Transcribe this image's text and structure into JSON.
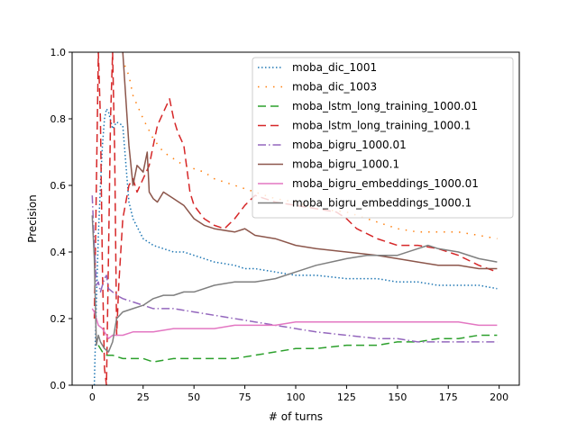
{
  "chart_data": {
    "type": "line",
    "title": "",
    "xlabel": "# of turns",
    "ylabel": "Precision",
    "xlim": [
      -9.9,
      209.9
    ],
    "ylim": [
      0.0,
      1.0
    ],
    "x_ticks": [
      0,
      25,
      50,
      75,
      100,
      125,
      150,
      175,
      200
    ],
    "y_ticks": [
      0.0,
      0.2,
      0.4,
      0.6,
      0.8,
      1.0
    ],
    "x_tick_labels": [
      "0",
      "25",
      "50",
      "75",
      "100",
      "125",
      "150",
      "175",
      "200"
    ],
    "y_tick_labels": [
      "0.0",
      "0.2",
      "0.4",
      "0.6",
      "0.8",
      "1.0"
    ],
    "grid": false,
    "legend_position": "upper right",
    "series": [
      {
        "name": "moba_dic_1001",
        "color": "#1f77b4",
        "dash": "dotted",
        "x": [
          1,
          2,
          3,
          4,
          5,
          6,
          7,
          8,
          10,
          12,
          15,
          18,
          20,
          25,
          30,
          35,
          40,
          45,
          50,
          60,
          70,
          75,
          80,
          90,
          100,
          110,
          125,
          140,
          150,
          160,
          170,
          180,
          190,
          199
        ],
        "y": [
          0.0,
          0.25,
          0.45,
          0.6,
          0.72,
          0.8,
          0.83,
          0.82,
          0.77,
          0.79,
          0.78,
          0.55,
          0.5,
          0.44,
          0.42,
          0.41,
          0.4,
          0.4,
          0.39,
          0.37,
          0.36,
          0.35,
          0.35,
          0.34,
          0.33,
          0.33,
          0.32,
          0.32,
          0.31,
          0.31,
          0.3,
          0.3,
          0.3,
          0.29
        ]
      },
      {
        "name": "moba_dic_1003",
        "color": "#ff7f0e",
        "dash": "loose-dotted",
        "x": [
          16,
          18,
          20,
          25,
          30,
          35,
          40,
          45,
          50,
          55,
          60,
          70,
          75,
          80,
          90,
          100,
          110,
          125,
          140,
          150,
          160,
          170,
          180,
          190,
          199
        ],
        "y": [
          0.96,
          0.93,
          0.87,
          0.8,
          0.74,
          0.7,
          0.68,
          0.66,
          0.65,
          0.64,
          0.62,
          0.6,
          0.59,
          0.58,
          0.56,
          0.55,
          0.53,
          0.52,
          0.49,
          0.47,
          0.46,
          0.46,
          0.46,
          0.45,
          0.44
        ]
      },
      {
        "name": "moba_lstm_long_training_1000.01",
        "color": "#2ca02c",
        "dash": "dashed",
        "x": [
          3,
          5,
          7,
          10,
          15,
          20,
          25,
          30,
          40,
          50,
          60,
          70,
          80,
          90,
          100,
          110,
          125,
          140,
          150,
          160,
          170,
          180,
          190,
          199
        ],
        "y": [
          0.12,
          0.1,
          0.09,
          0.09,
          0.08,
          0.08,
          0.08,
          0.07,
          0.08,
          0.08,
          0.08,
          0.08,
          0.09,
          0.1,
          0.11,
          0.11,
          0.12,
          0.12,
          0.13,
          0.13,
          0.14,
          0.14,
          0.15,
          0.15
        ]
      },
      {
        "name": "moba_lstm_long_training_1000.1",
        "color": "#d62728",
        "dash": "dashed",
        "x": [
          1,
          2,
          3,
          4,
          5,
          6,
          7,
          8,
          9,
          10,
          11,
          12,
          13,
          15,
          18,
          20,
          22,
          25,
          28,
          30,
          32,
          35,
          38,
          40,
          42,
          45,
          48,
          50,
          55,
          60,
          65,
          70,
          75,
          80,
          90,
          100,
          110,
          120,
          125,
          130,
          140,
          150,
          160,
          170,
          180,
          190,
          199
        ],
        "y": [
          0.2,
          0.6,
          1.0,
          0.8,
          0.35,
          0.05,
          0.0,
          0.4,
          0.8,
          1.0,
          0.7,
          0.15,
          0.3,
          0.5,
          0.6,
          0.62,
          0.58,
          0.62,
          0.66,
          0.72,
          0.78,
          0.82,
          0.86,
          0.8,
          0.76,
          0.72,
          0.58,
          0.54,
          0.5,
          0.48,
          0.47,
          0.5,
          0.54,
          0.57,
          0.55,
          0.54,
          0.53,
          0.52,
          0.5,
          0.47,
          0.44,
          0.42,
          0.42,
          0.41,
          0.39,
          0.36,
          0.34
        ]
      },
      {
        "name": "moba_bigru_1000.01",
        "color": "#9467bd",
        "dash": "dashdot",
        "x": [
          0,
          1,
          2,
          3,
          4,
          5,
          6,
          7,
          8,
          10,
          12,
          15,
          20,
          25,
          30,
          40,
          50,
          60,
          70,
          80,
          90,
          100,
          110,
          125,
          140,
          150,
          160,
          170,
          180,
          190,
          199
        ],
        "y": [
          0.57,
          0.42,
          0.3,
          0.31,
          0.28,
          0.3,
          0.32,
          0.33,
          0.29,
          0.28,
          0.27,
          0.26,
          0.25,
          0.24,
          0.23,
          0.23,
          0.22,
          0.21,
          0.2,
          0.19,
          0.18,
          0.17,
          0.16,
          0.15,
          0.14,
          0.14,
          0.13,
          0.13,
          0.13,
          0.13,
          0.13
        ]
      },
      {
        "name": "moba_bigru_1000.1",
        "color": "#8c564b",
        "dash": "solid",
        "x": [
          15,
          18,
          20,
          22,
          25,
          27,
          28,
          30,
          32,
          35,
          40,
          45,
          50,
          55,
          60,
          70,
          75,
          80,
          90,
          100,
          110,
          125,
          140,
          150,
          160,
          170,
          180,
          190,
          199
        ],
        "y": [
          1.0,
          0.72,
          0.6,
          0.66,
          0.64,
          0.7,
          0.58,
          0.56,
          0.55,
          0.58,
          0.56,
          0.54,
          0.5,
          0.48,
          0.47,
          0.46,
          0.47,
          0.45,
          0.44,
          0.42,
          0.41,
          0.4,
          0.39,
          0.38,
          0.37,
          0.36,
          0.36,
          0.35,
          0.35
        ]
      },
      {
        "name": "moba_bigru_embeddings_1000.01",
        "color": "#e377c2",
        "dash": "solid",
        "x": [
          0,
          1,
          2,
          3,
          5,
          8,
          10,
          15,
          20,
          25,
          30,
          40,
          50,
          60,
          70,
          80,
          90,
          100,
          110,
          125,
          140,
          150,
          160,
          170,
          180,
          190,
          199
        ],
        "y": [
          0.23,
          0.22,
          0.2,
          0.18,
          0.17,
          0.14,
          0.15,
          0.15,
          0.16,
          0.16,
          0.16,
          0.17,
          0.17,
          0.17,
          0.18,
          0.18,
          0.18,
          0.19,
          0.19,
          0.19,
          0.19,
          0.19,
          0.19,
          0.19,
          0.19,
          0.18,
          0.18
        ]
      },
      {
        "name": "moba_bigru_embeddings_1000.1",
        "color": "#7f7f7f",
        "dash": "solid",
        "x": [
          0,
          1,
          2,
          3,
          4,
          5,
          6,
          8,
          10,
          12,
          15,
          20,
          25,
          30,
          35,
          40,
          45,
          50,
          60,
          70,
          75,
          80,
          90,
          100,
          110,
          125,
          135,
          150,
          160,
          165,
          170,
          180,
          190,
          199
        ],
        "y": [
          0.51,
          0.38,
          0.12,
          0.15,
          0.13,
          0.12,
          0.11,
          0.1,
          0.13,
          0.2,
          0.22,
          0.23,
          0.24,
          0.26,
          0.27,
          0.27,
          0.28,
          0.28,
          0.3,
          0.31,
          0.31,
          0.31,
          0.32,
          0.34,
          0.36,
          0.38,
          0.39,
          0.39,
          0.41,
          0.42,
          0.41,
          0.4,
          0.38,
          0.37
        ]
      }
    ]
  }
}
